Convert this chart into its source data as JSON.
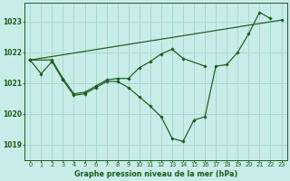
{
  "background_color": "#c8ece8",
  "grid_color": "#a8d8d0",
  "line_color": "#1a5c1a",
  "title": "Graphe pression niveau de la mer (hPa)",
  "xlim": [
    -0.5,
    23.5
  ],
  "ylim": [
    1018.5,
    1023.6
  ],
  "yticks": [
    1019,
    1020,
    1021,
    1022,
    1023
  ],
  "xticks": [
    0,
    1,
    2,
    3,
    4,
    5,
    6,
    7,
    8,
    9,
    10,
    11,
    12,
    13,
    14,
    15,
    16,
    17,
    18,
    19,
    20,
    21,
    22,
    23
  ],
  "series1_x": [
    0,
    1,
    2,
    3,
    4,
    5,
    6,
    7,
    8,
    9,
    10,
    11,
    12,
    13,
    14,
    15,
    16,
    17,
    18,
    19,
    20,
    21,
    22
  ],
  "series1_y": [
    1021.75,
    1021.3,
    1021.7,
    1021.1,
    1020.6,
    1020.65,
    1020.85,
    1021.05,
    1021.05,
    1020.85,
    1020.55,
    1020.25,
    1019.9,
    1019.2,
    1019.1,
    1019.8,
    1019.9,
    1021.55,
    1021.6,
    1022.0,
    1022.6,
    1023.3,
    1023.1
  ],
  "series2_x": [
    0,
    2,
    3,
    4,
    5,
    6,
    7,
    8,
    9,
    10,
    11,
    12,
    13,
    14,
    16
  ],
  "series2_y": [
    1021.75,
    1021.75,
    1021.15,
    1020.65,
    1020.7,
    1020.9,
    1021.1,
    1021.15,
    1021.15,
    1021.5,
    1021.7,
    1021.95,
    1022.1,
    1021.8,
    1021.55
  ],
  "series3_x": [
    0,
    23
  ],
  "series3_y": [
    1021.75,
    1023.05
  ]
}
